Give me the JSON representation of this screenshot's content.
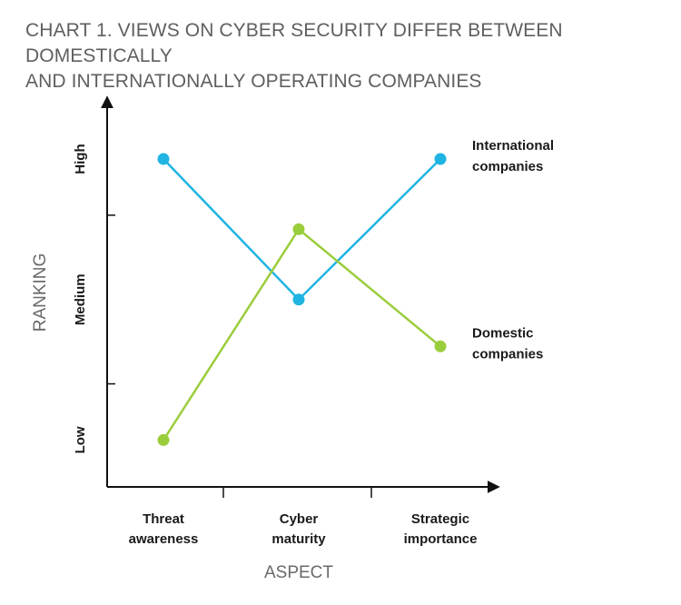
{
  "chart_data": {
    "type": "line",
    "title": [
      "CHART 1. VIEWS ON CYBER SECURITY DIFFER BETWEEN DOMESTICALLY",
      "AND INTERNATIONALLY OPERATING COMPANIES"
    ],
    "xlabel": "ASPECT",
    "ylabel": "RANKING",
    "categories": [
      [
        "Threat",
        "awareness"
      ],
      [
        "Cyber",
        "maturity"
      ],
      [
        "Strategic",
        "importance"
      ]
    ],
    "y_tick_labels": [
      {
        "value": 0.5,
        "label": "Low"
      },
      {
        "value": 2.0,
        "label": "Medium"
      },
      {
        "value": 3.5,
        "label": "High"
      }
    ],
    "ylim": [
      0,
      4.15
    ],
    "series": [
      {
        "name": [
          "International",
          "companies"
        ],
        "color": "#1fb4e2",
        "values": [
          3.5,
          2.0,
          3.5
        ]
      },
      {
        "name": [
          "Domestic",
          "companies"
        ],
        "color": "#9acd3c",
        "values": [
          0.5,
          2.75,
          1.5
        ]
      }
    ],
    "grid": false,
    "legend": "right, labels beside line ends"
  }
}
